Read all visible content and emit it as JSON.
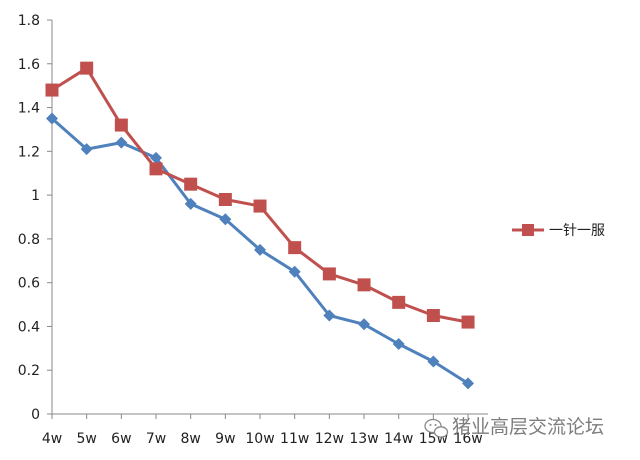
{
  "chart_data": {
    "type": "line",
    "categories": [
      "4w",
      "5w",
      "6w",
      "7w",
      "8w",
      "9w",
      "10w",
      "11w",
      "12w",
      "13w",
      "14w",
      "15w",
      "16w"
    ],
    "ylim": [
      0,
      1.8
    ],
    "yticks": [
      "0",
      "0.2",
      "0.4",
      "0.6",
      "0.8",
      "1",
      "1.2",
      "1.4",
      "1.6",
      "1.8"
    ],
    "ytick_values": [
      0,
      0.2,
      0.4,
      0.6,
      0.8,
      1.0,
      1.2,
      1.4,
      1.6,
      1.8
    ],
    "grid": false,
    "legend_position": "right",
    "series": [
      {
        "color": "#4f81bd",
        "marker": "diamond",
        "values": [
          1.35,
          1.21,
          1.24,
          1.17,
          0.96,
          0.89,
          0.75,
          0.65,
          0.45,
          0.41,
          0.32,
          0.24,
          0.14
        ]
      },
      {
        "name": "一针一服",
        "color": "#c0504d",
        "marker": "square",
        "values": [
          1.48,
          1.58,
          1.32,
          1.12,
          1.05,
          0.98,
          0.95,
          0.76,
          0.64,
          0.59,
          0.51,
          0.45,
          0.42
        ]
      }
    ]
  },
  "watermark": {
    "text": "猪业高层交流论坛",
    "icon": "wechat-icon"
  }
}
